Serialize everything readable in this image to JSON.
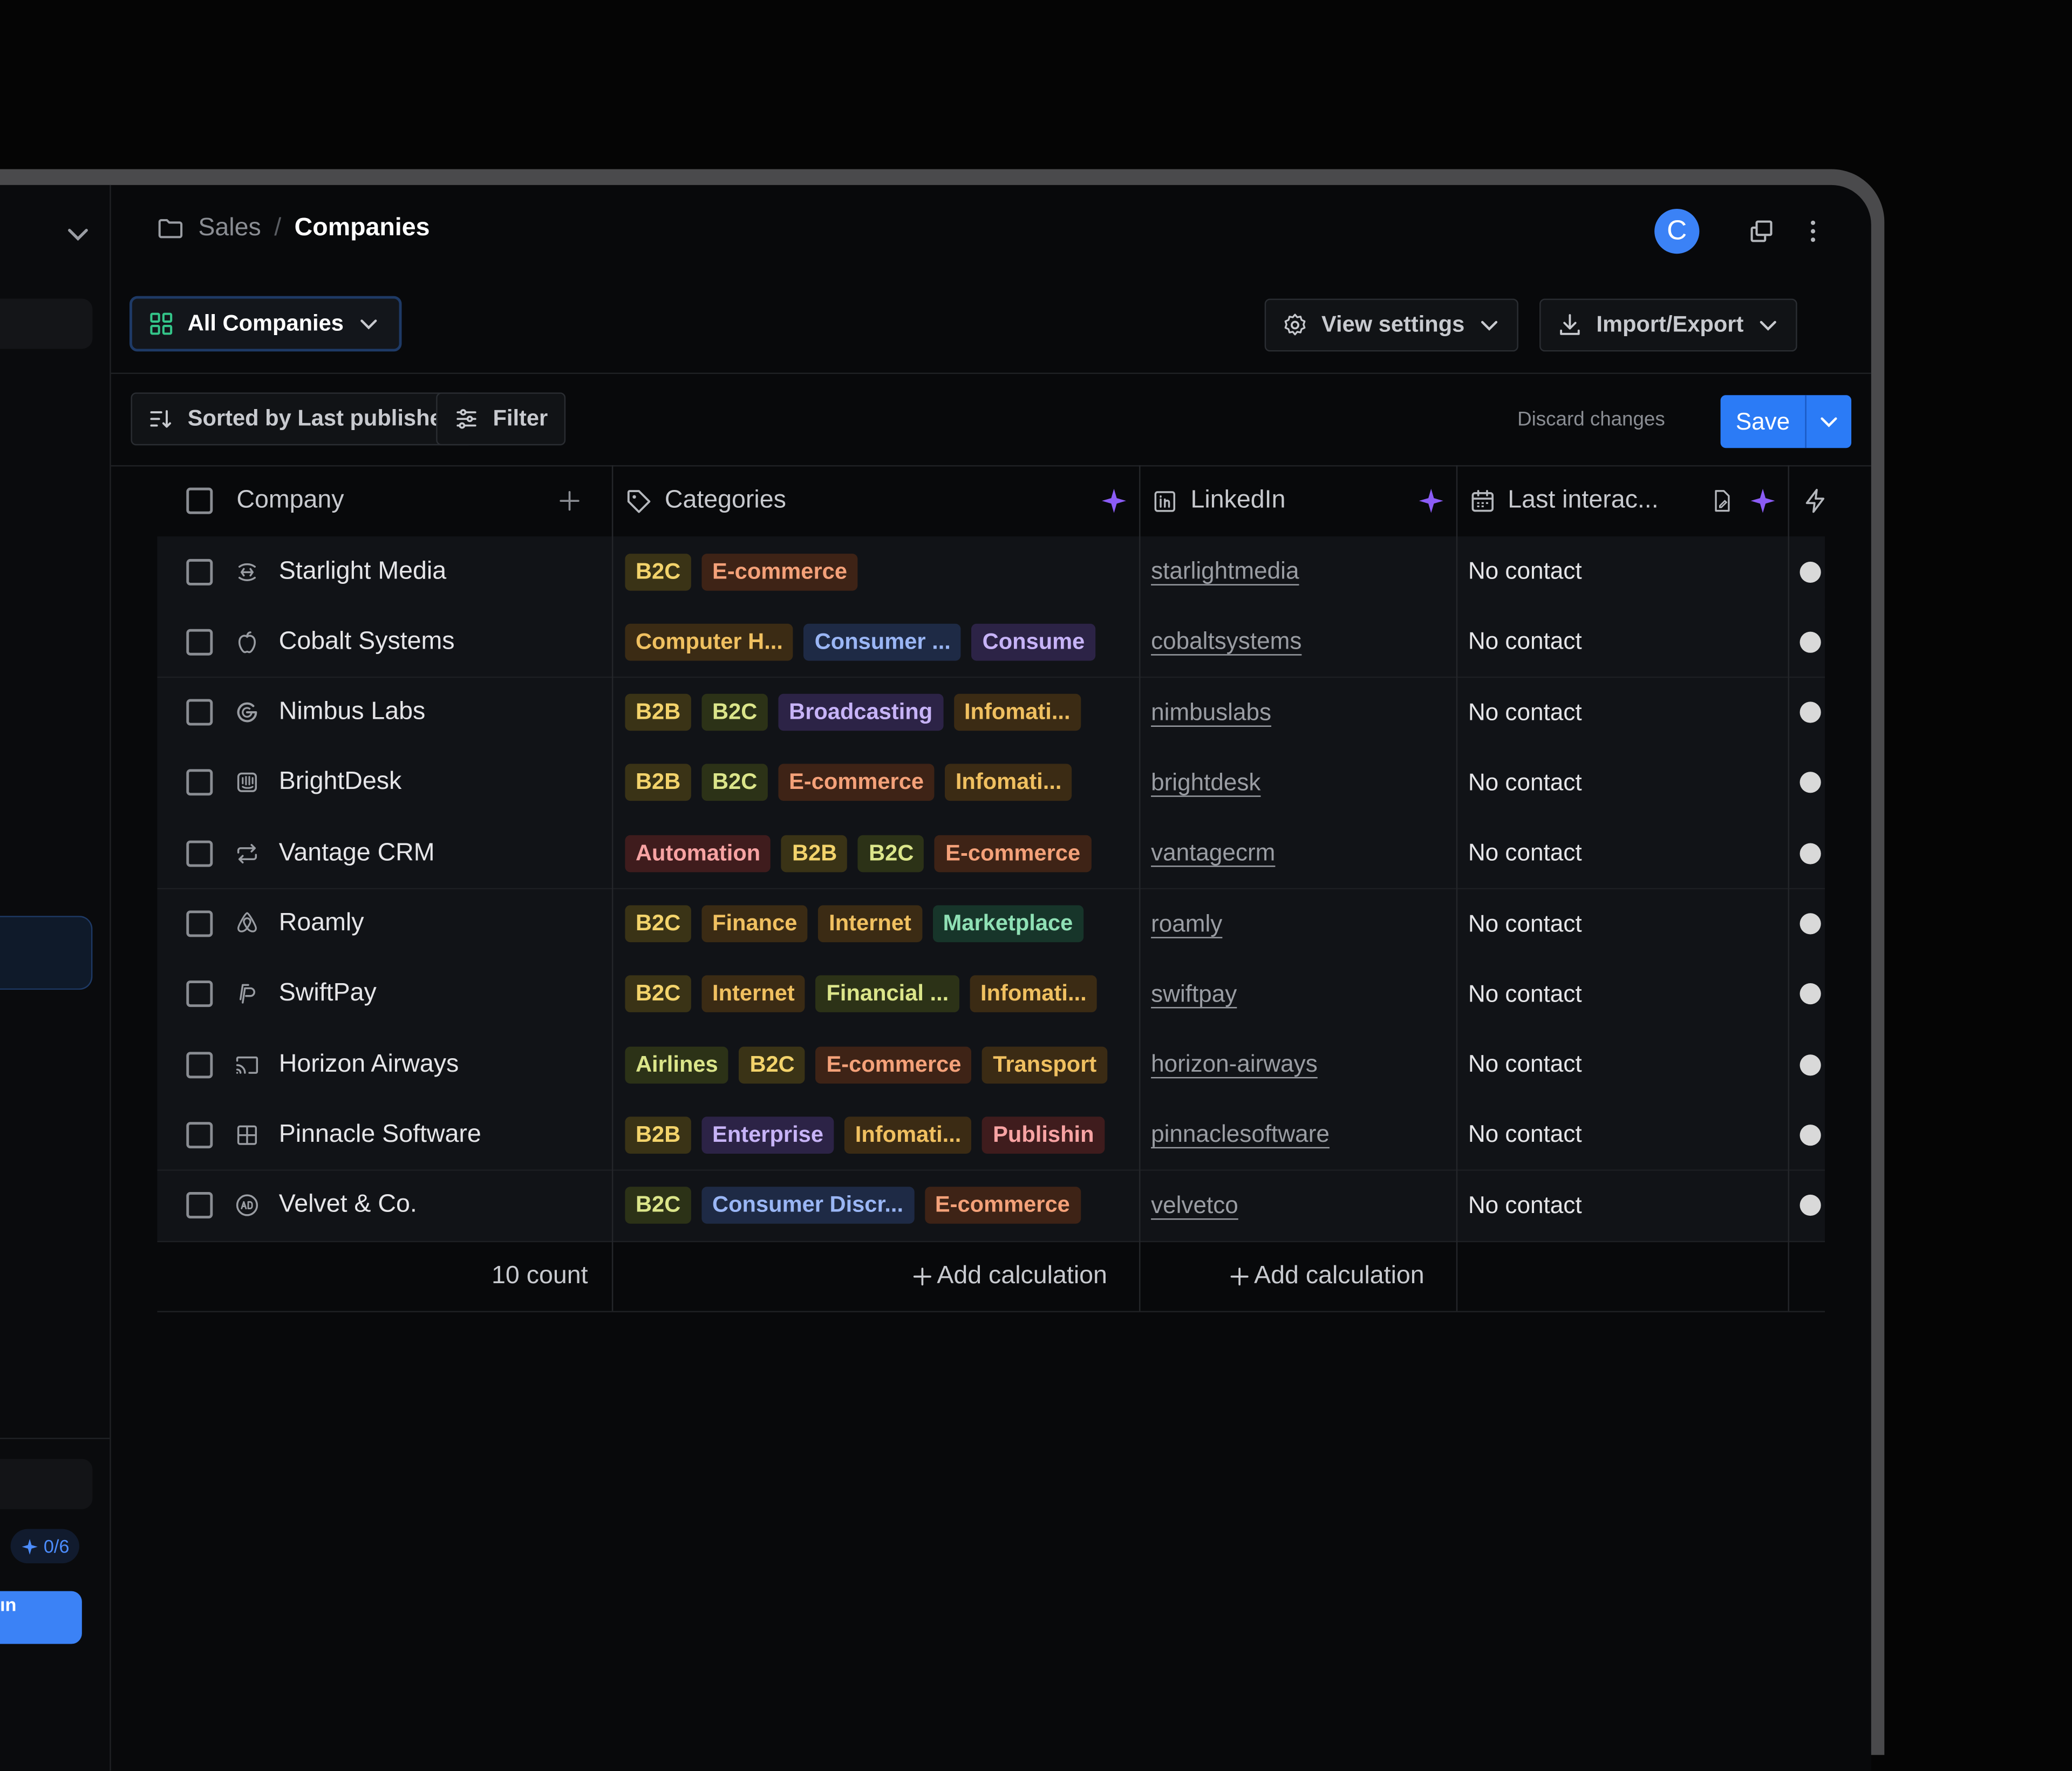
{
  "breadcrumb": {
    "parent": "Sales",
    "separator": "/",
    "current": "Companies"
  },
  "user": {
    "avatar_initial": "C",
    "avatar_color": "#3b82f6"
  },
  "view": {
    "name": "All Companies"
  },
  "toolbar": {
    "view_settings": "View settings",
    "import_export": "Import/Export"
  },
  "filterbar": {
    "sort_label": "Sorted by Last published",
    "filter_label": "Filter",
    "discard_label": "Discard changes",
    "save_label": "Save"
  },
  "sidebar": {
    "badge": "0/6",
    "button_label": "ın"
  },
  "table": {
    "columns": [
      {
        "label": "Company"
      },
      {
        "label": "Categories"
      },
      {
        "label": "LinkedIn"
      },
      {
        "label": "Last interac..."
      }
    ],
    "rows": [
      {
        "company": "Starlight Media",
        "icon": "discord-icon",
        "tags": [
          {
            "t": "B2C",
            "c": "t-yellow"
          },
          {
            "t": "E-commerce",
            "c": "t-orange"
          }
        ],
        "linkedin": "starlightmedia",
        "last": "No contact"
      },
      {
        "company": "Cobalt Systems",
        "icon": "apple-icon",
        "tags": [
          {
            "t": "Computer H...",
            "c": "t-amber"
          },
          {
            "t": "Consumer ...",
            "c": "t-blue"
          },
          {
            "t": "Consume",
            "c": "t-purple"
          }
        ],
        "linkedin": "cobaltsystems",
        "last": "No contact"
      },
      {
        "company": "Nimbus Labs",
        "icon": "google-icon",
        "tags": [
          {
            "t": "B2B",
            "c": "t-yellow"
          },
          {
            "t": "B2C",
            "c": "t-olive"
          },
          {
            "t": "Broadcasting",
            "c": "t-purple"
          },
          {
            "t": "Infomati...",
            "c": "t-amber"
          }
        ],
        "linkedin": "nimbuslabs",
        "last": "No contact"
      },
      {
        "company": "BrightDesk",
        "icon": "intercom-icon",
        "tags": [
          {
            "t": "B2B",
            "c": "t-yellow"
          },
          {
            "t": "B2C",
            "c": "t-olive"
          },
          {
            "t": "E-commerce",
            "c": "t-orange"
          },
          {
            "t": "Infomati...",
            "c": "t-amber"
          }
        ],
        "linkedin": "brightdesk",
        "last": "No contact"
      },
      {
        "company": "Vantage CRM",
        "icon": "repeat-icon",
        "tags": [
          {
            "t": "Automation",
            "c": "t-red"
          },
          {
            "t": "B2B",
            "c": "t-yellow"
          },
          {
            "t": "B2C",
            "c": "t-olive"
          },
          {
            "t": "E-commerce",
            "c": "t-orange"
          }
        ],
        "linkedin": "vantagecrm",
        "last": "No contact"
      },
      {
        "company": "Roamly",
        "icon": "airbnb-icon",
        "tags": [
          {
            "t": "B2C",
            "c": "t-yellow"
          },
          {
            "t": "Finance",
            "c": "t-amber"
          },
          {
            "t": "Internet",
            "c": "t-amber"
          },
          {
            "t": "Marketplace",
            "c": "t-green"
          }
        ],
        "linkedin": "roamly",
        "last": "No contact"
      },
      {
        "company": "SwiftPay",
        "icon": "paypal-icon",
        "tags": [
          {
            "t": "B2C",
            "c": "t-yellow"
          },
          {
            "t": "Internet",
            "c": "t-amber"
          },
          {
            "t": "Financial ...",
            "c": "t-olive"
          },
          {
            "t": "Infomati...",
            "c": "t-amber"
          }
        ],
        "linkedin": "swiftpay",
        "last": "No contact"
      },
      {
        "company": "Horizon Airways",
        "icon": "cast-icon",
        "tags": [
          {
            "t": "Airlines",
            "c": "t-olive"
          },
          {
            "t": "B2C",
            "c": "t-yellow"
          },
          {
            "t": "E-commerce",
            "c": "t-orange"
          },
          {
            "t": "Transport",
            "c": "t-amber"
          }
        ],
        "linkedin": "horizon-airways",
        "last": "No contact"
      },
      {
        "company": "Pinnacle Software",
        "icon": "windows-icon",
        "tags": [
          {
            "t": "B2B",
            "c": "t-yellow"
          },
          {
            "t": "Enterprise",
            "c": "t-purple"
          },
          {
            "t": "Infomati...",
            "c": "t-amber"
          },
          {
            "t": "Publishin",
            "c": "t-red"
          }
        ],
        "linkedin": "pinnaclesoftware",
        "last": "No contact"
      },
      {
        "company": "Velvet & Co.",
        "icon": "ad-icon",
        "tags": [
          {
            "t": "B2C",
            "c": "t-olive"
          },
          {
            "t": "Consumer Discr...",
            "c": "t-blue"
          },
          {
            "t": "E-commerce",
            "c": "t-orange"
          }
        ],
        "linkedin": "velvetco",
        "last": "No contact"
      }
    ],
    "footer": {
      "count": "10 count",
      "add_calc_1": "Add calculation",
      "add_calc_2": "Add calculation"
    }
  },
  "colors": {
    "accent": "#2b7bf6",
    "ai_sparkle": "#8b5cf6"
  }
}
